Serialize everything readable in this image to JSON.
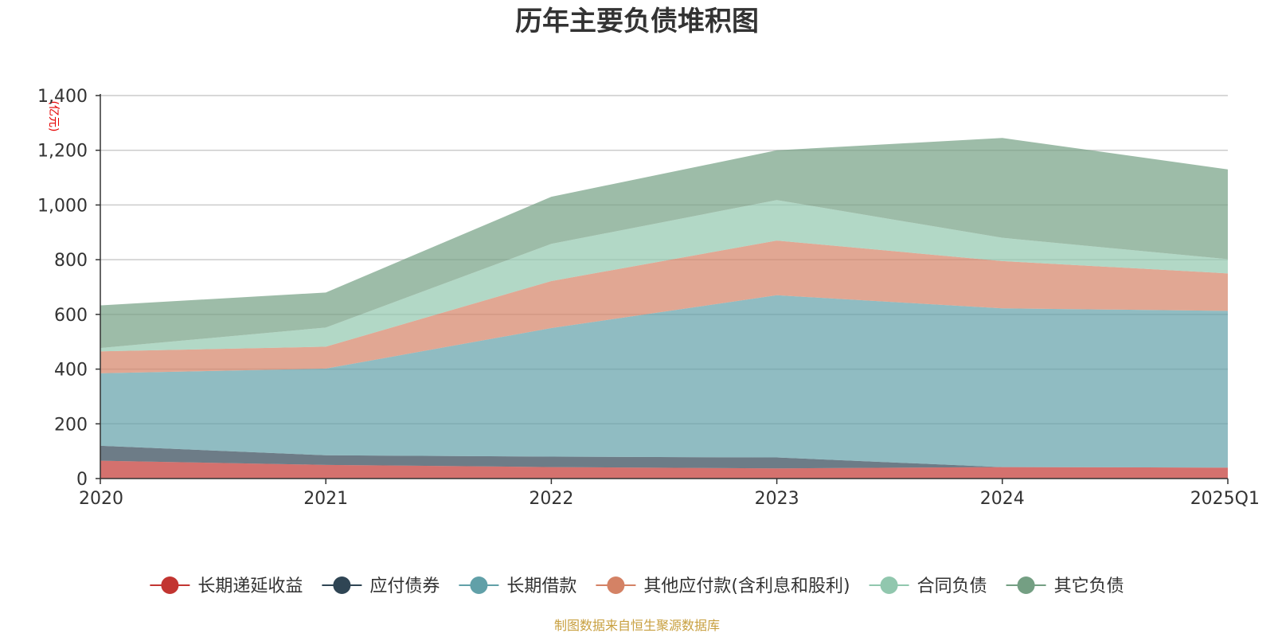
{
  "chart_data": {
    "type": "area",
    "stacked": true,
    "title": "历年主要负债堆积图",
    "y_unit": "(亿元)",
    "x": [
      "2020",
      "2021",
      "2022",
      "2023",
      "2024",
      "2025Q1"
    ],
    "ylim": [
      0,
      1400
    ],
    "yticks": [
      0,
      200,
      400,
      600,
      800,
      1000,
      1200,
      1400
    ],
    "ytick_labels": [
      "0",
      "200",
      "400",
      "600",
      "800",
      "1,000",
      "1,200",
      "1,400"
    ],
    "grid": true,
    "legend_position": "bottom",
    "series": [
      {
        "name": "长期递延收益",
        "color": "#c23531",
        "values": [
          65,
          50,
          42,
          37,
          42,
          40
        ]
      },
      {
        "name": "应付债券",
        "color": "#2f4554",
        "values": [
          55,
          35,
          38,
          40,
          0,
          0
        ]
      },
      {
        "name": "长期借款",
        "color": "#61a0a8",
        "values": [
          265,
          317,
          470,
          593,
          580,
          573
        ]
      },
      {
        "name": "其他应付款(含利息和股利)",
        "color": "#d48265",
        "values": [
          80,
          80,
          172,
          200,
          173,
          137
        ]
      },
      {
        "name": "合同负债",
        "color": "#91c7ae",
        "values": [
          12,
          70,
          136,
          148,
          85,
          52
        ]
      },
      {
        "name": "其它负债",
        "color": "#749f83",
        "values": [
          156,
          128,
          172,
          182,
          365,
          328
        ]
      }
    ]
  },
  "source_text": "制图数据来自恒生聚源数据库"
}
